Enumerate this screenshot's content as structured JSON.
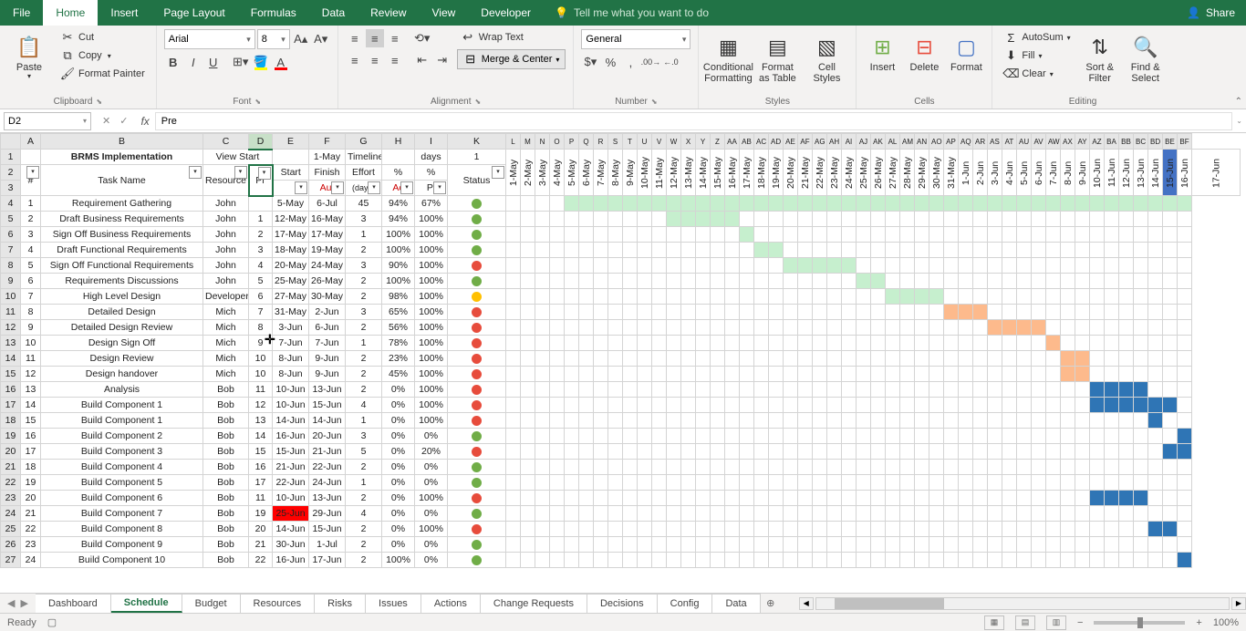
{
  "app": {
    "tabs": [
      "File",
      "Home",
      "Insert",
      "Page Layout",
      "Formulas",
      "Data",
      "Review",
      "View",
      "Developer"
    ],
    "active_tab": "Home",
    "tellme": "Tell me what you want to do",
    "share": "Share"
  },
  "ribbon": {
    "clipboard": {
      "label": "Clipboard",
      "paste": "Paste",
      "cut": "Cut",
      "copy": "Copy",
      "painter": "Format Painter",
      "cut_icon": "✂",
      "copy_icon": "⧉",
      "painter_icon": "🖌",
      "paste_icon": "📋"
    },
    "font": {
      "label": "Font",
      "name": "Arial",
      "size": "8",
      "bold": "B",
      "italic": "I",
      "underline": "U"
    },
    "alignment": {
      "label": "Alignment",
      "wrap": "Wrap Text",
      "merge": "Merge & Center"
    },
    "number": {
      "label": "Number",
      "format": "General"
    },
    "styles": {
      "label": "Styles",
      "cond": "Conditional Formatting",
      "table": "Format as Table",
      "cell": "Cell Styles"
    },
    "cells": {
      "label": "Cells",
      "insert": "Insert",
      "delete": "Delete",
      "format": "Format"
    },
    "editing": {
      "label": "Editing",
      "autosum": "AutoSum",
      "fill": "Fill",
      "clear": "Clear",
      "sort": "Sort & Filter",
      "find": "Find & Select"
    }
  },
  "formula_bar": {
    "cell_ref": "D2",
    "value": "Pre"
  },
  "columns": {
    "main": [
      "A",
      "B",
      "C",
      "D",
      "E",
      "F",
      "G",
      "H",
      "I",
      "K"
    ],
    "narrow": [
      "L",
      "M",
      "N",
      "O",
      "P",
      "Q",
      "R",
      "S",
      "T",
      "U",
      "V",
      "W",
      "X",
      "Y",
      "Z",
      "AA",
      "AB",
      "AC",
      "AD",
      "AE",
      "AF",
      "AG",
      "AH",
      "AI",
      "AJ",
      "AK",
      "AL",
      "AM",
      "AN",
      "AO",
      "AP",
      "AQ",
      "AR",
      "AS",
      "AT",
      "AU",
      "AV",
      "AW",
      "AX",
      "AY",
      "AZ",
      "BA",
      "BB",
      "BC",
      "BD",
      "BE",
      "BF"
    ]
  },
  "header_row1": {
    "title": "BRMS Implementation",
    "view_start": "View Start",
    "start_date": "1-May",
    "timeline": "Timeline",
    "days": "days",
    "count": "1"
  },
  "header_row2": {
    "num": "#",
    "task": "Task Name",
    "resource": "Resource",
    "pre": "Pr",
    "start": "Start",
    "finish": "Finish",
    "effort": "Effort",
    "pct1": "%",
    "pct2": "%",
    "status": "Status",
    "finish_sub": "Aut",
    "effort_sub": "(days)",
    "pct1_sub": "Ac",
    "pct2_sub": "Pl"
  },
  "dates": [
    "1-May",
    "2-May",
    "3-May",
    "4-May",
    "5-May",
    "6-May",
    "7-May",
    "8-May",
    "9-May",
    "10-May",
    "11-May",
    "12-May",
    "13-May",
    "14-May",
    "15-May",
    "16-May",
    "17-May",
    "18-May",
    "19-May",
    "20-May",
    "21-May",
    "22-May",
    "23-May",
    "24-May",
    "25-May",
    "26-May",
    "27-May",
    "28-May",
    "29-May",
    "30-May",
    "31-May",
    "1-Jun",
    "2-Jun",
    "3-Jun",
    "4-Jun",
    "5-Jun",
    "6-Jun",
    "7-Jun",
    "8-Jun",
    "9-Jun",
    "10-Jun",
    "11-Jun",
    "12-Jun",
    "13-Jun",
    "14-Jun",
    "15-Jun",
    "16-Jun",
    "17-Jun"
  ],
  "date_highlight_index": 45,
  "rows": [
    {
      "r": 4,
      "n": 1,
      "task": "Requirement Gathering",
      "res": "John",
      "pre": "",
      "start": "5-May",
      "finish": "6-Jul",
      "effort": "45",
      "p1": "94%",
      "p2": "67%",
      "dot": "green",
      "bar": {
        "from": 4,
        "to": 47,
        "cls": "gantt-g"
      }
    },
    {
      "r": 5,
      "n": 2,
      "task": "Draft Business Requirements",
      "res": "John",
      "pre": "1",
      "start": "12-May",
      "finish": "16-May",
      "effort": "3",
      "p1": "94%",
      "p2": "100%",
      "dot": "green",
      "bar": {
        "from": 11,
        "to": 15,
        "cls": "gantt-g"
      }
    },
    {
      "r": 6,
      "n": 3,
      "task": "Sign Off Business Requirements",
      "res": "John",
      "pre": "2",
      "start": "17-May",
      "finish": "17-May",
      "effort": "1",
      "p1": "100%",
      "p2": "100%",
      "dot": "green",
      "bar": {
        "from": 16,
        "to": 16,
        "cls": "gantt-g"
      }
    },
    {
      "r": 7,
      "n": 4,
      "task": "Draft Functional Requirements",
      "res": "John",
      "pre": "3",
      "start": "18-May",
      "finish": "19-May",
      "effort": "2",
      "p1": "100%",
      "p2": "100%",
      "dot": "green",
      "bar": {
        "from": 17,
        "to": 18,
        "cls": "gantt-g"
      }
    },
    {
      "r": 8,
      "n": 5,
      "task": "Sign Off Functional Requirements",
      "res": "John",
      "pre": "4",
      "start": "20-May",
      "finish": "24-May",
      "effort": "3",
      "p1": "90%",
      "p2": "100%",
      "dot": "red",
      "bar": {
        "from": 19,
        "to": 23,
        "cls": "gantt-g"
      }
    },
    {
      "r": 9,
      "n": 6,
      "task": "Requirements Discussions",
      "res": "John",
      "pre": "5",
      "start": "25-May",
      "finish": "26-May",
      "effort": "2",
      "p1": "100%",
      "p2": "100%",
      "dot": "green",
      "bar": {
        "from": 24,
        "to": 25,
        "cls": "gantt-g"
      }
    },
    {
      "r": 10,
      "n": 7,
      "task": "High Level Design",
      "res": "Developer",
      "pre": "6",
      "start": "27-May",
      "finish": "30-May",
      "effort": "2",
      "p1": "98%",
      "p2": "100%",
      "dot": "yellow",
      "bar": {
        "from": 26,
        "to": 29,
        "cls": "gantt-g"
      }
    },
    {
      "r": 11,
      "n": 8,
      "task": "Detailed Design",
      "res": "Mich",
      "pre": "7",
      "start": "31-May",
      "finish": "2-Jun",
      "effort": "3",
      "p1": "65%",
      "p2": "100%",
      "dot": "red",
      "bar": {
        "from": 30,
        "to": 32,
        "cls": "gantt-o"
      }
    },
    {
      "r": 12,
      "n": 9,
      "task": "Detailed Design Review",
      "res": "Mich",
      "pre": "8",
      "start": "3-Jun",
      "finish": "6-Jun",
      "effort": "2",
      "p1": "56%",
      "p2": "100%",
      "dot": "red",
      "bar": {
        "from": 33,
        "to": 36,
        "cls": "gantt-o"
      }
    },
    {
      "r": 13,
      "n": 10,
      "task": "Design Sign Off",
      "res": "Mich",
      "pre": "9",
      "start": "7-Jun",
      "finish": "7-Jun",
      "effort": "1",
      "p1": "78%",
      "p2": "100%",
      "dot": "red",
      "bar": {
        "from": 37,
        "to": 37,
        "cls": "gantt-o"
      }
    },
    {
      "r": 14,
      "n": 11,
      "task": "Design Review",
      "res": "Mich",
      "pre": "10",
      "start": "8-Jun",
      "finish": "9-Jun",
      "effort": "2",
      "p1": "23%",
      "p2": "100%",
      "dot": "red",
      "bar": {
        "from": 38,
        "to": 39,
        "cls": "gantt-o"
      }
    },
    {
      "r": 15,
      "n": 12,
      "task": "Design handover",
      "res": "Mich",
      "pre": "10",
      "start": "8-Jun",
      "finish": "9-Jun",
      "effort": "2",
      "p1": "45%",
      "p2": "100%",
      "dot": "red",
      "bar": {
        "from": 38,
        "to": 39,
        "cls": "gantt-o"
      }
    },
    {
      "r": 16,
      "n": 13,
      "task": "Analysis",
      "res": "Bob",
      "pre": "11",
      "start": "10-Jun",
      "finish": "13-Jun",
      "effort": "2",
      "p1": "0%",
      "p2": "100%",
      "dot": "red",
      "bar": {
        "from": 40,
        "to": 43,
        "cls": "gantt-b"
      }
    },
    {
      "r": 17,
      "n": 14,
      "task": "Build Component 1",
      "res": "Bob",
      "pre": "12",
      "start": "10-Jun",
      "finish": "15-Jun",
      "effort": "4",
      "p1": "0%",
      "p2": "100%",
      "dot": "red",
      "bar": {
        "from": 40,
        "to": 45,
        "cls": "gantt-b"
      }
    },
    {
      "r": 18,
      "n": 15,
      "task": "Build Component 1",
      "res": "Bob",
      "pre": "13",
      "start": "14-Jun",
      "finish": "14-Jun",
      "effort": "1",
      "p1": "0%",
      "p2": "100%",
      "dot": "red",
      "bar": {
        "from": 44,
        "to": 44,
        "cls": "gantt-b"
      }
    },
    {
      "r": 19,
      "n": 16,
      "task": "Build Component 2",
      "res": "Bob",
      "pre": "14",
      "start": "16-Jun",
      "finish": "20-Jun",
      "effort": "3",
      "p1": "0%",
      "p2": "0%",
      "dot": "green",
      "bar": {
        "from": 46,
        "to": 47,
        "cls": "gantt-b"
      }
    },
    {
      "r": 20,
      "n": 17,
      "task": "Build Component 3",
      "res": "Bob",
      "pre": "15",
      "start": "15-Jun",
      "finish": "21-Jun",
      "effort": "5",
      "p1": "0%",
      "p2": "20%",
      "dot": "red",
      "bar": {
        "from": 45,
        "to": 47,
        "cls": "gantt-b"
      }
    },
    {
      "r": 21,
      "n": 18,
      "task": "Build Component 4",
      "res": "Bob",
      "pre": "16",
      "start": "21-Jun",
      "finish": "22-Jun",
      "effort": "2",
      "p1": "0%",
      "p2": "0%",
      "dot": "green",
      "bar": null
    },
    {
      "r": 22,
      "n": 19,
      "task": "Build Component 5",
      "res": "Bob",
      "pre": "17",
      "start": "22-Jun",
      "finish": "24-Jun",
      "effort": "1",
      "p1": "0%",
      "p2": "0%",
      "dot": "green",
      "bar": null
    },
    {
      "r": 23,
      "n": 20,
      "task": "Build Component 6",
      "res": "Bob",
      "pre": "11",
      "start": "10-Jun",
      "finish": "13-Jun",
      "effort": "2",
      "p1": "0%",
      "p2": "100%",
      "dot": "red",
      "bar": {
        "from": 40,
        "to": 43,
        "cls": "gantt-b"
      }
    },
    {
      "r": 24,
      "n": 21,
      "task": "Build Component 7",
      "res": "Bob",
      "pre": "19",
      "start": "25-Jun",
      "finish": "29-Jun",
      "effort": "4",
      "p1": "0%",
      "p2": "0%",
      "dot": "green",
      "bar": null,
      "start_red": true
    },
    {
      "r": 25,
      "n": 22,
      "task": "Build Component 8",
      "res": "Bob",
      "pre": "20",
      "start": "14-Jun",
      "finish": "15-Jun",
      "effort": "2",
      "p1": "0%",
      "p2": "100%",
      "dot": "red",
      "bar": {
        "from": 44,
        "to": 45,
        "cls": "gantt-b"
      }
    },
    {
      "r": 26,
      "n": 23,
      "task": "Build Component 9",
      "res": "Bob",
      "pre": "21",
      "start": "30-Jun",
      "finish": "1-Jul",
      "effort": "2",
      "p1": "0%",
      "p2": "0%",
      "dot": "green",
      "bar": null
    },
    {
      "r": 27,
      "n": 24,
      "task": "Build Component 10",
      "res": "Bob",
      "pre": "22",
      "start": "16-Jun",
      "finish": "17-Jun",
      "effort": "2",
      "p1": "100%",
      "p2": "0%",
      "dot": "green",
      "bar": {
        "from": 46,
        "to": 47,
        "cls": "gantt-b"
      }
    }
  ],
  "sheet_tabs": [
    "Dashboard",
    "Schedule",
    "Budget",
    "Resources",
    "Risks",
    "Issues",
    "Actions",
    "Change Requests",
    "Decisions",
    "Config",
    "Data"
  ],
  "active_sheet": "Schedule",
  "statusbar": {
    "ready": "Ready",
    "zoom": "100%"
  }
}
